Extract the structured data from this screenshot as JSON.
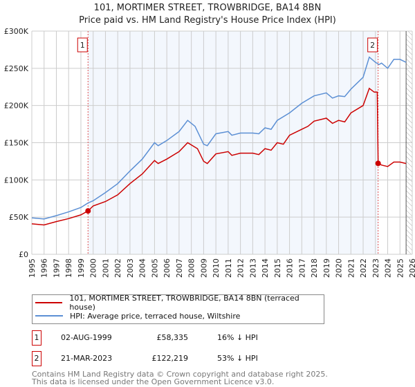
{
  "title": "101, MORTIMER STREET, TROWBRIDGE, BA14 8BN",
  "subtitle": "Price paid vs. HM Land Registry's House Price Index (HPI)",
  "chart_data": {
    "type": "line",
    "title": "101, MORTIMER STREET, TROWBRIDGE, BA14 8BN — Price paid vs. HPI",
    "xlim": [
      1995,
      2026
    ],
    "ylim": [
      0,
      300000
    ],
    "yticks": [
      {
        "v": 0,
        "label": "£0"
      },
      {
        "v": 50000,
        "label": "£50K"
      },
      {
        "v": 100000,
        "label": "£100K"
      },
      {
        "v": 150000,
        "label": "£150K"
      },
      {
        "v": 200000,
        "label": "£200K"
      },
      {
        "v": 250000,
        "label": "£250K"
      },
      {
        "v": 300000,
        "label": "£300K"
      }
    ],
    "xticks": [
      "1995",
      "1996",
      "1997",
      "1998",
      "1999",
      "2000",
      "2001",
      "2002",
      "2003",
      "2004",
      "2005",
      "2006",
      "2007",
      "2008",
      "2009",
      "2010",
      "2011",
      "2012",
      "2013",
      "2014",
      "2015",
      "2016",
      "2017",
      "2018",
      "2019",
      "2020",
      "2021",
      "2022",
      "2023",
      "2024",
      "2025",
      "2026"
    ],
    "ownership_band": [
      1999.58,
      2023.22
    ],
    "forecast_hatch_from": 2025.5,
    "series": [
      {
        "name": "101, MORTIMER STREET, TROWBRIDGE, BA14 8BN (terraced house)",
        "color": "#cc0000",
        "x": [
          1995,
          1996,
          1997,
          1998,
          1999,
          1999.58,
          2000,
          2001,
          2002,
          2003,
          2004,
          2005,
          2005.3,
          2006,
          2007,
          2007.7,
          2008.5,
          2009,
          2009.3,
          2010,
          2011,
          2011.3,
          2012,
          2013,
          2013.5,
          2014,
          2014.5,
          2015,
          2015.5,
          2016,
          2017,
          2017.5,
          2018,
          2019,
          2019.5,
          2020,
          2020.5,
          2021,
          2022,
          2022.5,
          2022.9,
          2023.15,
          2023.22,
          2023.5,
          2024,
          2024.5,
          2025,
          2025.5
        ],
        "y": [
          41000,
          39500,
          44000,
          48000,
          53000,
          58335,
          65000,
          71000,
          80000,
          95000,
          108000,
          126000,
          122000,
          128000,
          138000,
          150000,
          142000,
          125000,
          122000,
          135000,
          138000,
          133000,
          136000,
          136000,
          134000,
          142000,
          140000,
          150000,
          148000,
          160000,
          168000,
          172000,
          179000,
          183000,
          176000,
          180000,
          178000,
          190000,
          200000,
          223000,
          218000,
          218000,
          122219,
          120000,
          118000,
          124000,
          124000,
          122000
        ]
      },
      {
        "name": "HPI: Average price, terraced house, Wiltshire",
        "color": "#5b8fd4",
        "x": [
          1995,
          1996,
          1997,
          1998,
          1999,
          1999.58,
          2000,
          2001,
          2002,
          2003,
          2004,
          2005,
          2005.3,
          2006,
          2007,
          2007.7,
          2008.3,
          2009,
          2009.3,
          2010,
          2011,
          2011.3,
          2012,
          2013,
          2013.5,
          2014,
          2014.5,
          2015,
          2016,
          2017,
          2018,
          2019,
          2019.5,
          2020,
          2020.5,
          2021,
          2022,
          2022.5,
          2023,
          2023.3,
          2023.5,
          2024,
          2024.5,
          2025,
          2025.5
        ],
        "y": [
          49000,
          47500,
          52000,
          57000,
          63000,
          69000,
          72000,
          83000,
          95000,
          112000,
          128000,
          150000,
          146000,
          153000,
          165000,
          180000,
          172000,
          148000,
          146000,
          162000,
          165000,
          160000,
          163000,
          163000,
          162000,
          170000,
          168000,
          180000,
          190000,
          203000,
          213000,
          217000,
          210000,
          213000,
          212000,
          222000,
          238000,
          265000,
          258000,
          255000,
          257000,
          250000,
          262000,
          262000,
          258000
        ]
      }
    ],
    "sales": [
      {
        "n": "1",
        "date": "02-AUG-1999",
        "x": 1999.58,
        "price": "£58,335",
        "price_value": 58335,
        "hpi": "16% ↓ HPI"
      },
      {
        "n": "2",
        "date": "21-MAR-2023",
        "x": 2023.22,
        "price": "£122,219",
        "price_value": 122219,
        "hpi": "53% ↓ HPI"
      }
    ]
  },
  "legend": {
    "red": "101, MORTIMER STREET, TROWBRIDGE, BA14 8BN (terraced house)",
    "blue": "HPI: Average price, terraced house, Wiltshire"
  },
  "footer": {
    "line1": "Contains HM Land Registry data © Crown copyright and database right 2025.",
    "line2": "This data is licensed under the Open Government Licence v3.0."
  }
}
